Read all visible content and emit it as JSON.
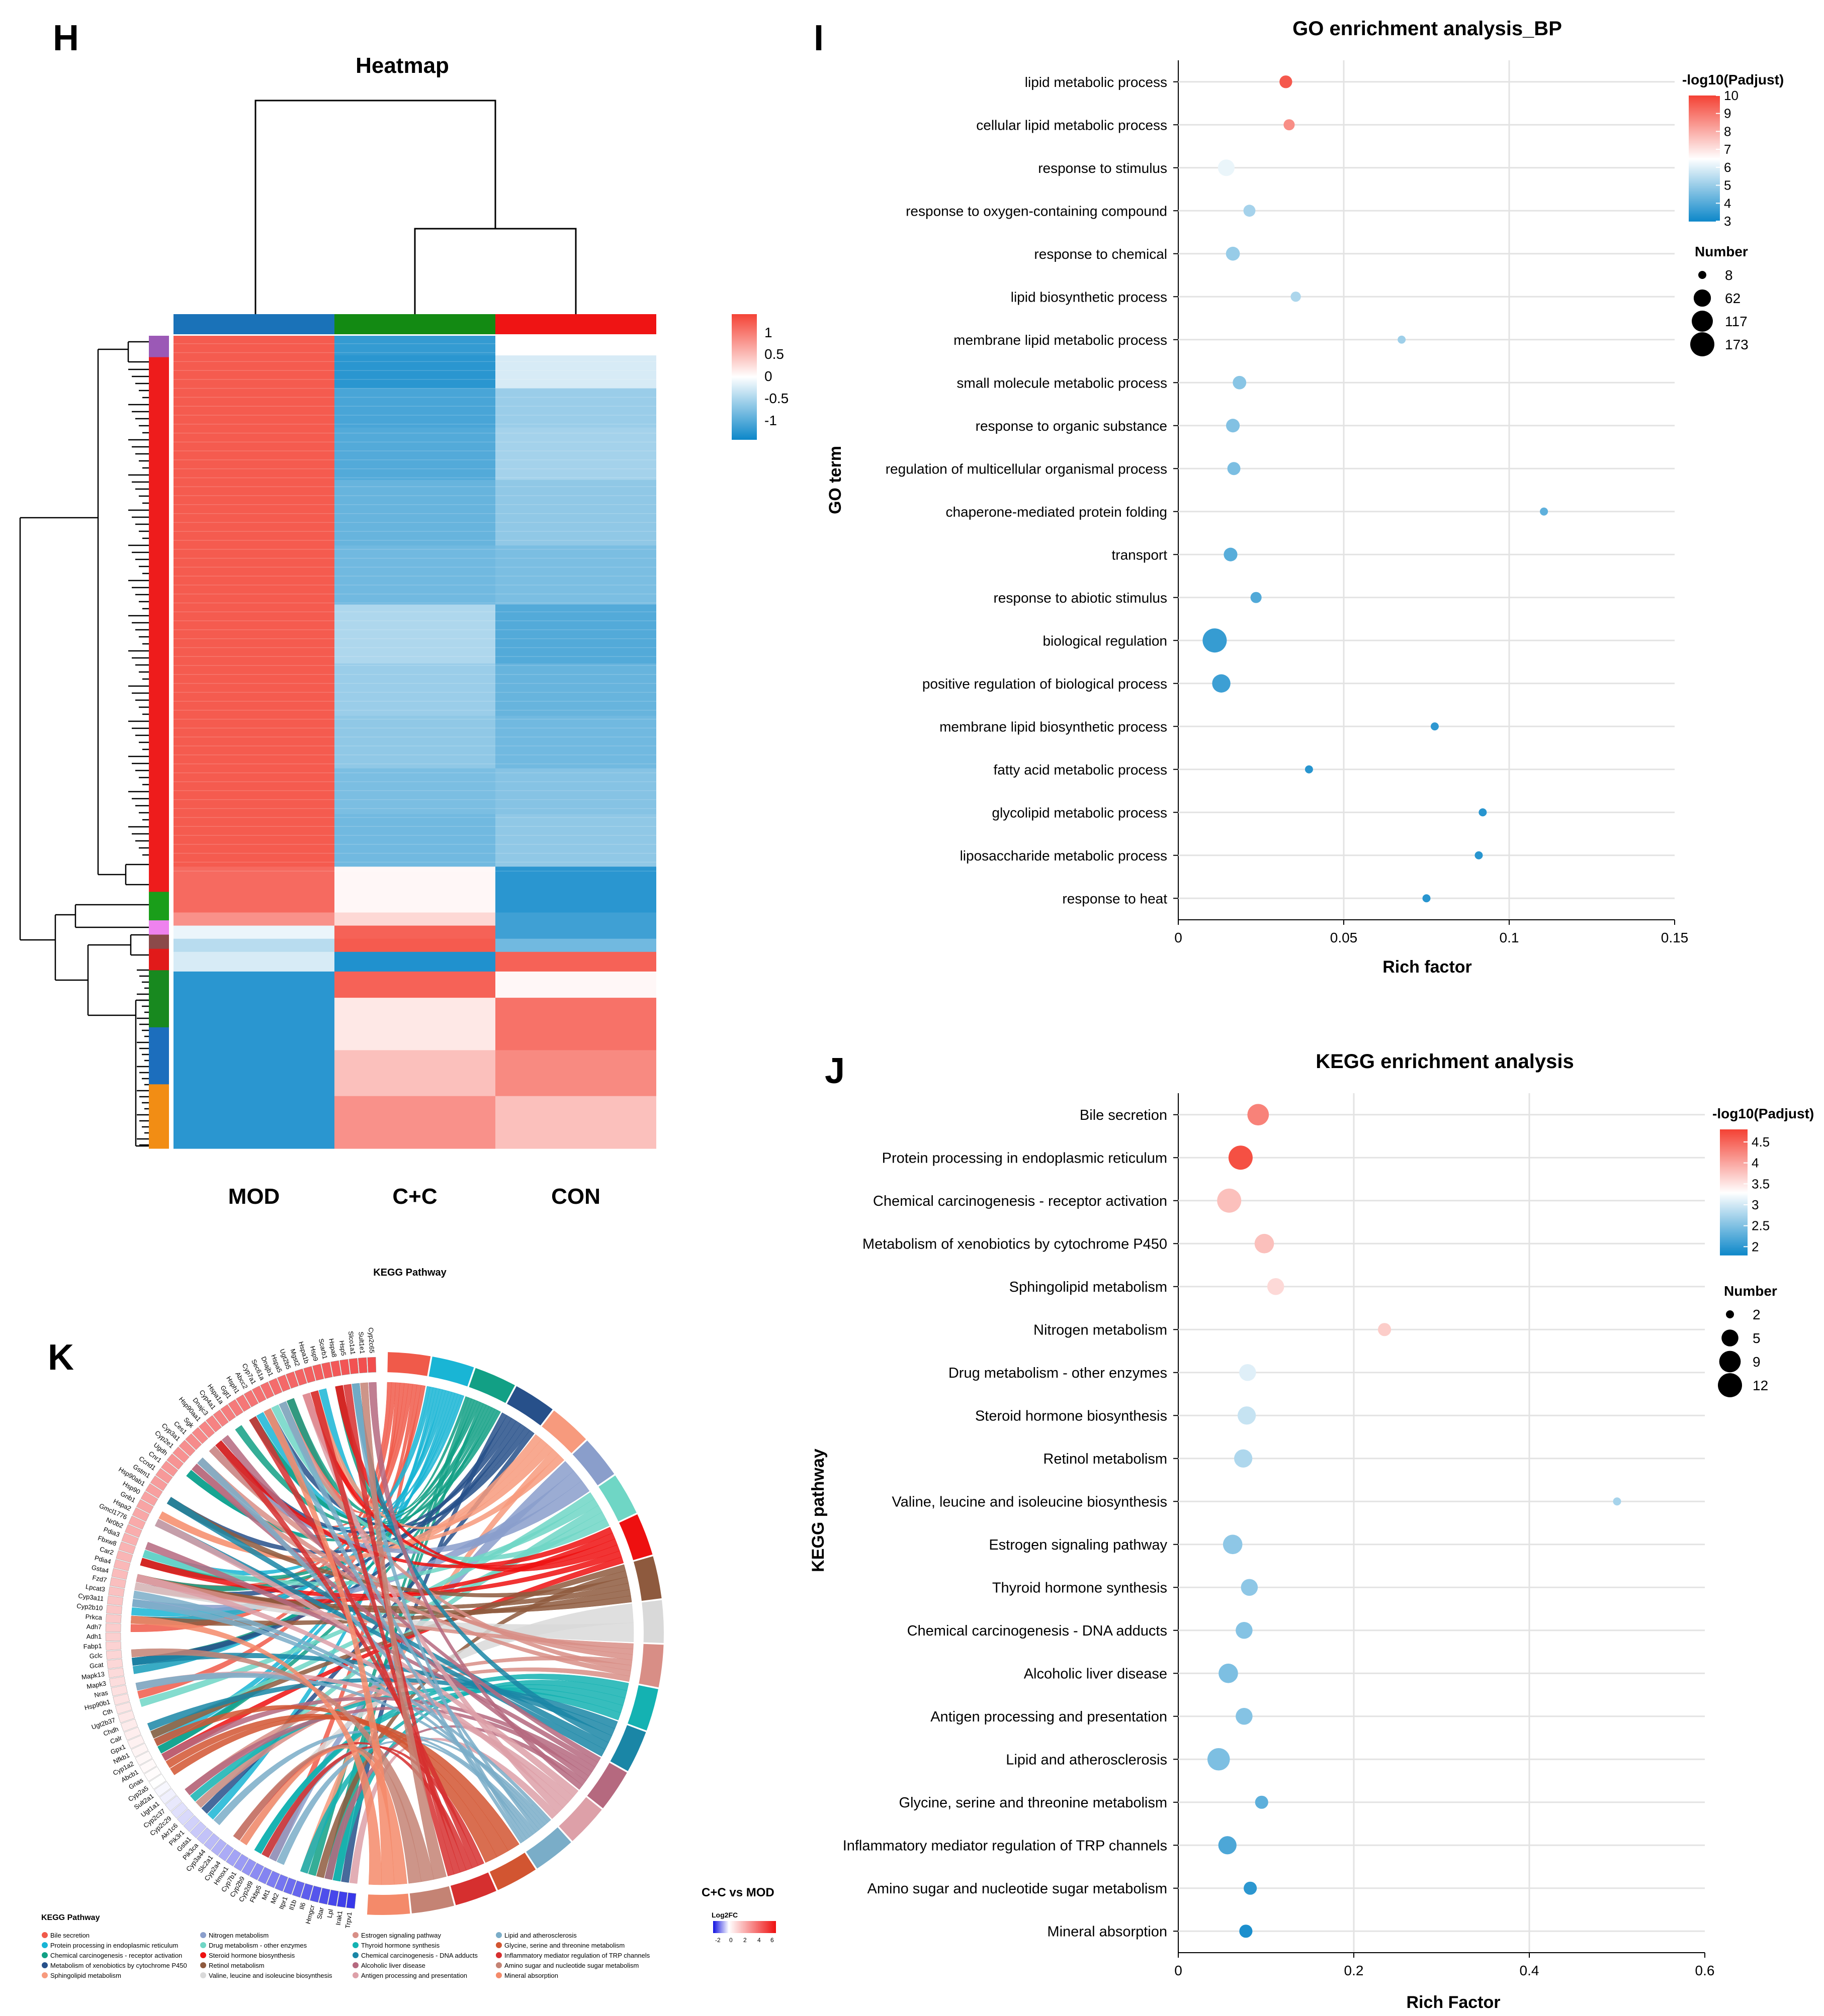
{
  "panels": {
    "h": {
      "letter": "H",
      "title": "Heatmap",
      "groups": [
        "MOD",
        "C+C",
        "CON"
      ],
      "colorbar": {
        "ticks": [
          "1",
          "0.5",
          "0",
          "-0.5",
          "-1"
        ]
      }
    },
    "i": {
      "letter": "I"
    },
    "j": {
      "letter": "J"
    },
    "k": {
      "letter": "K",
      "title": "KEGG Pathway",
      "legend_title": "KEGG Pathway",
      "comparison": "C+C vs MOD",
      "fc_title": "Log2FC",
      "fc_ticks": [
        "-2",
        "0",
        "2",
        "4",
        "6"
      ]
    }
  },
  "colors": {
    "up": "#f44336",
    "mid": "#ffffff",
    "down": "#0c87c9",
    "mod_bar": "#1a72b8",
    "cc_bar": "#138a13",
    "con_bar": "#ef1414"
  },
  "heatmap": {
    "rows": [
      {
        "n": 3,
        "v": [
          1.05,
          -1.0,
          0.0
        ]
      },
      {
        "n": 5,
        "v": [
          1.05,
          -1.05,
          -0.2
        ]
      },
      {
        "n": 6,
        "v": [
          1.05,
          -0.9,
          -0.5
        ]
      },
      {
        "n": 8,
        "v": [
          1.05,
          -0.85,
          -0.45
        ]
      },
      {
        "n": 10,
        "v": [
          1.05,
          -0.75,
          -0.55
        ]
      },
      {
        "n": 9,
        "v": [
          1.05,
          -0.7,
          -0.65
        ]
      },
      {
        "n": 9,
        "v": [
          1.05,
          -0.4,
          -0.85
        ]
      },
      {
        "n": 8,
        "v": [
          1.05,
          -0.5,
          -0.75
        ]
      },
      {
        "n": 8,
        "v": [
          1.05,
          -0.55,
          -0.7
        ]
      },
      {
        "n": 7,
        "v": [
          1.05,
          -0.65,
          -0.6
        ]
      },
      {
        "n": 8,
        "v": [
          1.05,
          -0.7,
          -0.55
        ]
      },
      {
        "n": 7,
        "v": [
          0.95,
          0.05,
          -1.05
        ]
      },
      {
        "n": 2,
        "v": [
          0.7,
          0.25,
          -0.95
        ]
      },
      {
        "n": 2,
        "v": [
          -0.1,
          1.0,
          -0.95
        ]
      },
      {
        "n": 2,
        "v": [
          -0.35,
          1.05,
          -0.7
        ]
      },
      {
        "n": 3,
        "v": [
          -0.2,
          -1.1,
          1.0
        ]
      },
      {
        "n": 4,
        "v": [
          -1.05,
          1.0,
          0.05
        ]
      },
      {
        "n": 8,
        "v": [
          -1.05,
          0.15,
          0.9
        ]
      },
      {
        "n": 7,
        "v": [
          -1.05,
          0.4,
          0.75
        ]
      },
      {
        "n": 8,
        "v": [
          -1.05,
          0.7,
          0.4
        ]
      }
    ],
    "row_clusters": [
      "#9b59b6",
      "#ee1c1c",
      "#1a9e1a",
      "#ee82ee",
      "#8b4a4a",
      "#e11a1a",
      "#18891f",
      "#1c6ebd",
      "#f28d14"
    ],
    "row_cluster_sizes": [
      3,
      75,
      4,
      2,
      2,
      3,
      8,
      8,
      9
    ]
  },
  "chart_data": [
    {
      "type": "scatter",
      "title": "GO enrichment analysis_BP",
      "xlabel": "Rich factor",
      "ylabel": "GO term",
      "xlim": [
        0,
        0.15
      ],
      "xticks": [
        "0",
        "0.05",
        "0.1",
        "0.15"
      ],
      "color_legend": {
        "title": "-log10(Padjust)",
        "range": [
          3,
          10
        ],
        "ticks": [
          "10",
          "9",
          "8",
          "7",
          "6",
          "5",
          "4",
          "3"
        ]
      },
      "size_legend": {
        "title": "Number",
        "values": [
          8,
          62,
          117,
          173
        ]
      },
      "points": [
        {
          "term": "lipid metabolic process",
          "x": 0.0325,
          "color": 9.6,
          "size": 22
        },
        {
          "term": "cellular lipid metabolic process",
          "x": 0.0335,
          "color": 8.6,
          "size": 14
        },
        {
          "term": "response to stimulus",
          "x": 0.0145,
          "color": 6.2,
          "size": 55
        },
        {
          "term": "response to oxygen-containing compound",
          "x": 0.0215,
          "color": 5.2,
          "size": 18
        },
        {
          "term": "response to chemical",
          "x": 0.0165,
          "color": 5.0,
          "size": 30
        },
        {
          "term": "lipid biosynthetic process",
          "x": 0.0355,
          "color": 5.3,
          "size": 11
        },
        {
          "term": "membrane lipid metabolic process",
          "x": 0.0675,
          "color": 5.1,
          "size": 8
        },
        {
          "term": "small molecule metabolic process",
          "x": 0.0185,
          "color": 4.8,
          "size": 27
        },
        {
          "term": "response to organic substance",
          "x": 0.0165,
          "color": 4.7,
          "size": 28
        },
        {
          "term": "regulation of multicellular organismal process",
          "x": 0.0168,
          "color": 4.6,
          "size": 24
        },
        {
          "term": "chaperone-mediated protein folding",
          "x": 0.1105,
          "color": 4.2,
          "size": 8
        },
        {
          "term": "transport",
          "x": 0.0158,
          "color": 4.1,
          "size": 28
        },
        {
          "term": "response to abiotic stimulus",
          "x": 0.0235,
          "color": 4.0,
          "size": 14
        },
        {
          "term": "biological regulation",
          "x": 0.011,
          "color": 3.6,
          "size": 173
        },
        {
          "term": "positive regulation of biological process",
          "x": 0.013,
          "color": 3.7,
          "size": 75
        },
        {
          "term": "membrane lipid biosynthetic process",
          "x": 0.0775,
          "color": 3.5,
          "size": 8
        },
        {
          "term": "fatty acid metabolic process",
          "x": 0.0395,
          "color": 3.4,
          "size": 8
        },
        {
          "term": "glycolipid metabolic process",
          "x": 0.092,
          "color": 3.4,
          "size": 8
        },
        {
          "term": "liposaccharide metabolic process",
          "x": 0.0908,
          "color": 3.4,
          "size": 8
        },
        {
          "term": "response to heat",
          "x": 0.075,
          "color": 3.4,
          "size": 8
        }
      ]
    },
    {
      "type": "scatter",
      "title": "KEGG enrichment analysis",
      "xlabel": "Rich Factor",
      "ylabel": "KEGG pathway",
      "xlim": [
        0,
        0.6
      ],
      "xticks": [
        "0",
        "0.2",
        "0.4",
        "0.6"
      ],
      "color_legend": {
        "title": "-log10(Padjust)",
        "range": [
          1.8,
          4.8
        ],
        "ticks": [
          "4.5",
          "4",
          "3.5",
          "3",
          "2.5",
          "2"
        ]
      },
      "size_legend": {
        "title": "Number",
        "values": [
          2,
          5,
          9,
          12
        ]
      },
      "points": [
        {
          "term": "Bile secretion",
          "x": 0.091,
          "color": 4.3,
          "size": 9
        },
        {
          "term": "Protein processing in endoplasmic reticulum",
          "x": 0.071,
          "color": 4.7,
          "size": 12
        },
        {
          "term": "Chemical carcinogenesis - receptor activation",
          "x": 0.058,
          "color": 3.8,
          "size": 12
        },
        {
          "term": "Metabolism of xenobiotics by cytochrome P450",
          "x": 0.098,
          "color": 3.8,
          "size": 7
        },
        {
          "term": "Sphingolipid metabolism",
          "x": 0.111,
          "color": 3.6,
          "size": 5
        },
        {
          "term": "Nitrogen metabolism",
          "x": 0.235,
          "color": 3.7,
          "size": 3
        },
        {
          "term": "Drug metabolism - other enzymes",
          "x": 0.079,
          "color": 3.1,
          "size": 5
        },
        {
          "term": "Steroid hormone biosynthesis",
          "x": 0.078,
          "color": 2.95,
          "size": 6
        },
        {
          "term": "Retinol metabolism",
          "x": 0.074,
          "color": 2.8,
          "size": 6
        },
        {
          "term": "Valine, leucine and isoleucine biosynthesis",
          "x": 0.5,
          "color": 2.75,
          "size": 2
        },
        {
          "term": "Estrogen signaling pathway",
          "x": 0.062,
          "color": 2.6,
          "size": 7
        },
        {
          "term": "Thyroid hormone synthesis",
          "x": 0.081,
          "color": 2.6,
          "size": 5
        },
        {
          "term": "Chemical carcinogenesis - DNA adducts",
          "x": 0.075,
          "color": 2.55,
          "size": 5
        },
        {
          "term": "Alcoholic liver disease",
          "x": 0.057,
          "color": 2.5,
          "size": 7
        },
        {
          "term": "Antigen processing and presentation",
          "x": 0.075,
          "color": 2.55,
          "size": 5
        },
        {
          "term": "Lipid and atherosclerosis",
          "x": 0.046,
          "color": 2.5,
          "size": 10
        },
        {
          "term": "Glycine, serine and threonine metabolism",
          "x": 0.095,
          "color": 2.3,
          "size": 3
        },
        {
          "term": "Inflammatory mediator regulation of TRP channels",
          "x": 0.056,
          "color": 2.2,
          "size": 6
        },
        {
          "term": "Amino sugar and nucleotide sugar metabolism",
          "x": 0.082,
          "color": 2.0,
          "size": 3
        },
        {
          "term": "Mineral absorption",
          "x": 0.077,
          "color": 1.9,
          "size": 3
        }
      ]
    }
  ],
  "chord": {
    "pathways": [
      {
        "name": "Bile secretion",
        "color": "#f05a4a"
      },
      {
        "name": "Protein processing in endoplasmic reticulum",
        "color": "#19b5d5"
      },
      {
        "name": "Chemical carcinogenesis - receptor activation",
        "color": "#12a085"
      },
      {
        "name": "Metabolism of xenobiotics by cytochrome P450",
        "color": "#27508a"
      },
      {
        "name": "Sphingolipid metabolism",
        "color": "#f79a7d"
      },
      {
        "name": "Nitrogen metabolism",
        "color": "#8a9ecb"
      },
      {
        "name": "Drug metabolism - other enzymes",
        "color": "#6fd6c5"
      },
      {
        "name": "Steroid hormone biosynthesis",
        "color": "#ee1010"
      },
      {
        "name": "Retinol metabolism",
        "color": "#8e5a3e"
      },
      {
        "name": "Valine, leucine and isoleucine biosynthesis",
        "color": "#d9d9d9"
      },
      {
        "name": "Estrogen signaling pathway",
        "color": "#d88e86"
      },
      {
        "name": "Thyroid hormone synthesis",
        "color": "#14b2b2"
      },
      {
        "name": "Chemical carcinogenesis - DNA adducts",
        "color": "#1a86a6"
      },
      {
        "name": "Alcoholic liver disease",
        "color": "#b5697f"
      },
      {
        "name": "Antigen processing and presentation",
        "color": "#dda0a8"
      },
      {
        "name": "Lipid and atherosclerosis",
        "color": "#7aadc8"
      },
      {
        "name": "Glycine, serine and threonine metabolism",
        "color": "#d25531"
      },
      {
        "name": "Inflammatory mediator regulation of TRP channels",
        "color": "#d62f2f"
      },
      {
        "name": "Amino sugar and nucleotide sugar metabolism",
        "color": "#c48374"
      },
      {
        "name": "Mineral absorption",
        "color": "#f48a6a"
      }
    ],
    "genes": [
      "Cyp2c65",
      "Sult1e1",
      "Slco1a1",
      "Hsp5",
      "Hspa8",
      "Scarb1",
      "Hsp9",
      "Hspa1b",
      "Mgst2",
      "Ugt2b5",
      "Hspa5",
      "Dnajb1",
      "Sec61a",
      "Cyp7a1",
      "Abcc2",
      "Hsph1",
      "Ggt1",
      "Hspa1a",
      "Cyp4a1",
      "Dnajc3",
      "Hsp90aa1",
      "Sgk",
      "Ces1",
      "Cyp3a1",
      "Cyp2e1",
      "Ugdh",
      "Cnr1",
      "Ccnd1",
      "Gstm1",
      "Hsp90ab1",
      "Hsp90",
      "Gnb1",
      "Hspa2",
      "Gmcl1776",
      "Nr0b2",
      "Pdia3",
      "Fbxw8",
      "Car2",
      "Pdia4",
      "Gsta4",
      "Fzd7",
      "Lpcat3",
      "Cyp3a11",
      "Cyp2b10",
      "Prkca",
      "Adh7",
      "Adh1",
      "Fabp1",
      "Gclc",
      "Gcat",
      "Mapk13",
      "Mapk3",
      "Nras",
      "Hsp90b1",
      "Cth",
      "Ugt2b37",
      "Chdh",
      "Calr",
      "Gpx1",
      "Nfkb1",
      "Cyp1a2",
      "Abcb1",
      "Gnas",
      "Cyp2a5",
      "Sult2a1",
      "Ugt1a1",
      "Cyp2c37",
      "Cyp2c29",
      "Akr1c6",
      "Pik3r1",
      "Gsta1",
      "Pik3ca",
      "Cyp3a44",
      "Slc2a1",
      "Cyp2a4",
      "Hmox1",
      "Cyp7b1",
      "Cyp2b9",
      "Cyp2d9",
      "Fkbp5",
      "Mt1",
      "Mt2",
      "Itpr1",
      "Il1b",
      "Il6",
      "Hmgcr",
      "Star",
      "Lpl",
      "Irak1",
      "Trpv1"
    ]
  }
}
